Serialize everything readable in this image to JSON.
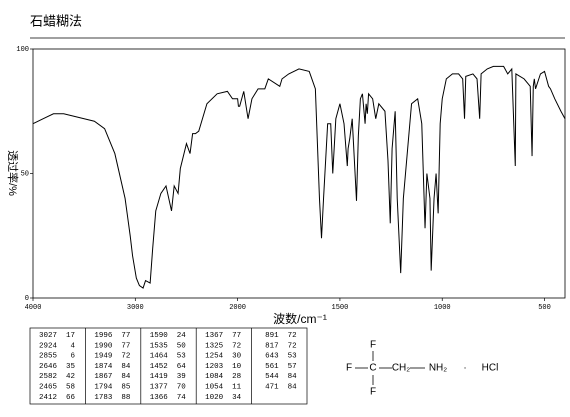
{
  "chart_data": {
    "type": "line",
    "title": "石蜡糊法",
    "xlabel": "波数/cm⁻¹",
    "ylabel": "透过率/%",
    "xlim": [
      4000,
      400
    ],
    "xticks": [
      4000,
      3000,
      2000,
      1500,
      1000,
      500
    ],
    "xscale_break": 2000,
    "ylim": [
      0,
      100
    ],
    "yticks": [
      0,
      50,
      100
    ],
    "color": "#000000",
    "x": [
      4000,
      3900,
      3800,
      3700,
      3600,
      3500,
      3400,
      3300,
      3200,
      3100,
      3050,
      3027,
      2990,
      2960,
      2924,
      2900,
      2855,
      2830,
      2800,
      2750,
      2700,
      2646,
      2620,
      2582,
      2560,
      2500,
      2465,
      2440,
      2412,
      2380,
      2300,
      2200,
      2100,
      2050,
      2000,
      1996,
      1990,
      1970,
      1949,
      1930,
      1900,
      1874,
      1867,
      1850,
      1794,
      1783,
      1750,
      1700,
      1650,
      1620,
      1600,
      1590,
      1580,
      1560,
      1545,
      1535,
      1520,
      1500,
      1480,
      1464,
      1460,
      1452,
      1440,
      1419,
      1410,
      1400,
      1390,
      1377,
      1372,
      1366,
      1360,
      1340,
      1325,
      1310,
      1280,
      1265,
      1254,
      1245,
      1230,
      1220,
      1203,
      1190,
      1150,
      1120,
      1100,
      1084,
      1075,
      1060,
      1054,
      1040,
      1030,
      1020,
      1010,
      1000,
      980,
      950,
      920,
      900,
      891,
      885,
      850,
      830,
      817,
      810,
      780,
      750,
      700,
      680,
      660,
      643,
      640,
      600,
      570,
      561,
      555,
      550,
      544,
      520,
      500,
      480,
      471,
      450,
      420,
      400
    ],
    "values": [
      70,
      72,
      74,
      74,
      73,
      72,
      71,
      68,
      58,
      40,
      25,
      17,
      8,
      5,
      4,
      7,
      6,
      20,
      35,
      42,
      45,
      35,
      45,
      42,
      52,
      62,
      58,
      66,
      66,
      67,
      78,
      82,
      83,
      80,
      80,
      77,
      77,
      83,
      72,
      80,
      84,
      84,
      84,
      88,
      85,
      88,
      90,
      92,
      91,
      84,
      40,
      24,
      40,
      70,
      70,
      50,
      72,
      78,
      70,
      53,
      60,
      64,
      72,
      39,
      65,
      80,
      82,
      70,
      78,
      74,
      82,
      80,
      72,
      78,
      75,
      55,
      30,
      60,
      75,
      40,
      10,
      40,
      78,
      80,
      70,
      28,
      50,
      40,
      11,
      40,
      50,
      34,
      70,
      80,
      88,
      90,
      90,
      88,
      72,
      89,
      90,
      88,
      72,
      90,
      92,
      93,
      93,
      90,
      92,
      53,
      90,
      88,
      85,
      57,
      85,
      88,
      84,
      90,
      91,
      85,
      84,
      80,
      75,
      72
    ]
  },
  "peak_table": [
    [
      [
        3027,
        17
      ],
      [
        2924,
        4
      ],
      [
        2855,
        6
      ],
      [
        2646,
        35
      ],
      [
        2582,
        42
      ],
      [
        2465,
        58
      ],
      [
        2412,
        66
      ]
    ],
    [
      [
        1996,
        77
      ],
      [
        1990,
        77
      ],
      [
        1949,
        72
      ],
      [
        1874,
        84
      ],
      [
        1867,
        84
      ],
      [
        1794,
        85
      ],
      [
        1783,
        88
      ]
    ],
    [
      [
        1590,
        24
      ],
      [
        1535,
        50
      ],
      [
        1464,
        53
      ],
      [
        1452,
        64
      ],
      [
        1419,
        39
      ],
      [
        1377,
        70
      ],
      [
        1366,
        74
      ]
    ],
    [
      [
        1367,
        77
      ],
      [
        1325,
        72
      ],
      [
        1254,
        30
      ],
      [
        1203,
        10
      ],
      [
        1084,
        28
      ],
      [
        1054,
        11
      ],
      [
        1020,
        34
      ]
    ],
    [
      [
        891,
        72
      ],
      [
        817,
        72
      ],
      [
        643,
        53
      ],
      [
        561,
        57
      ],
      [
        544,
        84
      ],
      [
        471,
        84
      ]
    ]
  ],
  "structure": {
    "top": "F",
    "left": "F",
    "center": "C",
    "chain1": "CH₂",
    "chain2": "NH₂",
    "dot": "·",
    "salt": "HCl",
    "bottom": "F"
  }
}
